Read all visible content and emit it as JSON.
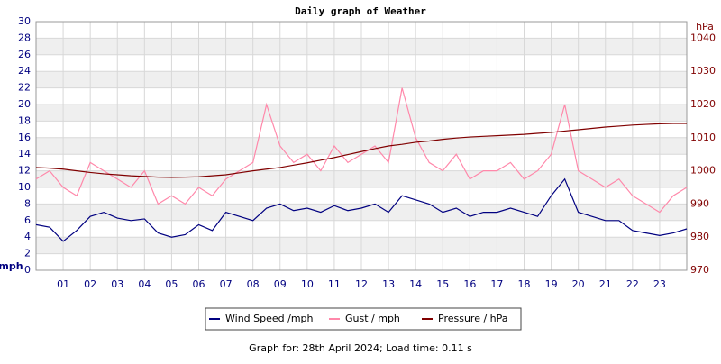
{
  "chart_data": {
    "type": "line",
    "title": "Daily graph of Weather",
    "y_label": "mph",
    "y2_label": "hPa",
    "footer": "Graph for: 28th April 2024; Load time: 0.11 s",
    "grid": true,
    "x": [
      0,
      0.5,
      1,
      1.5,
      2,
      2.5,
      3,
      3.5,
      4,
      4.5,
      5,
      5.5,
      6,
      6.5,
      7,
      7.5,
      8,
      8.5,
      9,
      9.5,
      10,
      10.5,
      11,
      11.5,
      12,
      12.5,
      13,
      13.5,
      14,
      14.5,
      15,
      15.5,
      16,
      16.5,
      17,
      17.5,
      18,
      18.5,
      19,
      19.5,
      20,
      20.5,
      21,
      21.5,
      22,
      22.5,
      23,
      23.5,
      24
    ],
    "xlim": [
      0,
      24
    ],
    "xticks": [
      {
        "value": 1,
        "label": "01"
      },
      {
        "value": 2,
        "label": "02"
      },
      {
        "value": 3,
        "label": "03"
      },
      {
        "value": 4,
        "label": "04"
      },
      {
        "value": 5,
        "label": "05"
      },
      {
        "value": 6,
        "label": "06"
      },
      {
        "value": 7,
        "label": "07"
      },
      {
        "value": 8,
        "label": "08"
      },
      {
        "value": 9,
        "label": "09"
      },
      10,
      11,
      12,
      13,
      14,
      15,
      16,
      17,
      18,
      19,
      20,
      21,
      22,
      23
    ],
    "ylim": [
      0,
      30
    ],
    "yticks": [
      0,
      2,
      4,
      6,
      8,
      10,
      12,
      14,
      16,
      18,
      20,
      22,
      24,
      26,
      28,
      30
    ],
    "y2lim": [
      970,
      1045
    ],
    "y2ticks": [
      970,
      980,
      990,
      1000,
      1010,
      1020,
      1030,
      1040
    ],
    "series": [
      {
        "name": "Wind Speed /mph",
        "color": "#000080",
        "values": [
          5.5,
          5.2,
          3.5,
          4.8,
          6.5,
          7.0,
          6.3,
          6.0,
          6.2,
          4.5,
          4.0,
          4.3,
          5.5,
          4.8,
          7.0,
          6.5,
          6.0,
          7.5,
          8.0,
          7.2,
          7.5,
          7.0,
          7.8,
          7.2,
          7.5,
          8.0,
          7.0,
          9.0,
          8.5,
          8.0,
          7.0,
          7.5,
          6.5,
          7.0,
          7.0,
          7.5,
          7.0,
          6.5,
          9.0,
          11.0,
          7.0,
          6.5,
          6.0,
          6.0,
          4.8,
          4.5,
          4.2,
          4.5,
          5.0
        ]
      },
      {
        "name": "Gust / mph",
        "color": "#ff88aa",
        "values": [
          11,
          12,
          10,
          9,
          13,
          12,
          11,
          10,
          12,
          8,
          9,
          8,
          10,
          9,
          11,
          12,
          13,
          20,
          15,
          13,
          14,
          12,
          15,
          13,
          14,
          15,
          13,
          22,
          16,
          13,
          12,
          14,
          11,
          12,
          12,
          13,
          11,
          12,
          14,
          20,
          12,
          11,
          10,
          11,
          9,
          8,
          7,
          9,
          10
        ]
      },
      {
        "name": "Pressure / hPa",
        "color": "#800000",
        "axis": "y2",
        "values": [
          1001,
          1000.8,
          1000.5,
          1000,
          999.5,
          999.1,
          998.8,
          998.5,
          998.3,
          998.1,
          998,
          998.1,
          998.2,
          998.5,
          998.8,
          999.4,
          1000,
          1000.5,
          1001,
          1001.7,
          1002.4,
          1003.2,
          1004,
          1004.9,
          1005.8,
          1006.7,
          1007.5,
          1008,
          1008.6,
          1009,
          1009.5,
          1009.9,
          1010.2,
          1010.4,
          1010.6,
          1010.8,
          1011,
          1011.3,
          1011.6,
          1012,
          1012.4,
          1012.8,
          1013.2,
          1013.5,
          1013.8,
          1014,
          1014.2,
          1014.3,
          1014.3
        ]
      }
    ]
  }
}
